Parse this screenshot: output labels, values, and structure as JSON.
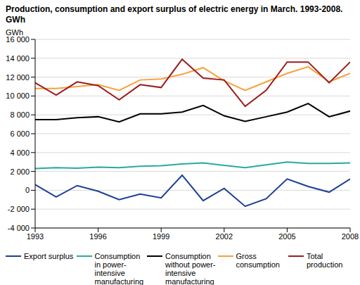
{
  "chart_data": {
    "type": "line",
    "title": "Production, consumption and export surplus of electric energy in March. 1993-2008. GWh",
    "y_label": "GWh",
    "x": [
      1993,
      1994,
      1995,
      1996,
      1997,
      1998,
      1999,
      2000,
      2001,
      2002,
      2003,
      2004,
      2005,
      2006,
      2007,
      2008
    ],
    "xlim": [
      1993,
      2008
    ],
    "xticks": [
      1993,
      1996,
      1999,
      2002,
      2005,
      2008
    ],
    "ylim": [
      -4000,
      16000
    ],
    "yticks": [
      {
        "value": -4000,
        "label": "-4 000"
      },
      {
        "value": -2000,
        "label": "-2 000"
      },
      0,
      {
        "value": 2000,
        "label": "2 000"
      },
      {
        "value": 4000,
        "label": "4 000"
      },
      {
        "value": 6000,
        "label": "6 000"
      },
      {
        "value": 8000,
        "label": "8 000"
      },
      {
        "value": 10000,
        "label": "10 000"
      },
      {
        "value": 12000,
        "label": "12 000"
      },
      {
        "value": 14000,
        "label": "14 000"
      },
      {
        "value": 16000,
        "label": "16 000"
      }
    ],
    "grid": true,
    "legend": "bottom",
    "series": [
      {
        "name": "Export surplus",
        "color": "#1c3f94",
        "values": [
          600,
          -700,
          500,
          -100,
          -1000,
          -400,
          -800,
          1600,
          -1100,
          200,
          -1700,
          -900,
          1200,
          400,
          -200,
          1200
        ]
      },
      {
        "name": "Consumption in power-intensive manufacturing",
        "color": "#2aa9a0",
        "values": [
          2300,
          2400,
          2350,
          2450,
          2400,
          2550,
          2600,
          2800,
          2900,
          2650,
          2400,
          2700,
          3000,
          2850,
          2850,
          2900
        ]
      },
      {
        "name": "Consumption without power-intensive manufacturing",
        "color": "#000000",
        "values": [
          7500,
          7500,
          7700,
          7800,
          7250,
          8100,
          8100,
          8300,
          9000,
          7900,
          7300,
          7800,
          8300,
          9200,
          7800,
          8400
        ]
      },
      {
        "name": "Gross consumption",
        "color": "#f7a13c",
        "values": [
          10800,
          10800,
          11000,
          11200,
          10600,
          11700,
          11800,
          12300,
          13000,
          11600,
          10600,
          11500,
          12400,
          13100,
          11500,
          12400
        ]
      },
      {
        "name": "Total production",
        "color": "#9b1c1c",
        "values": [
          11400,
          10100,
          11500,
          11100,
          9600,
          11200,
          10900,
          13900,
          11900,
          11700,
          8900,
          10600,
          13600,
          13600,
          11400,
          13600
        ]
      }
    ]
  }
}
